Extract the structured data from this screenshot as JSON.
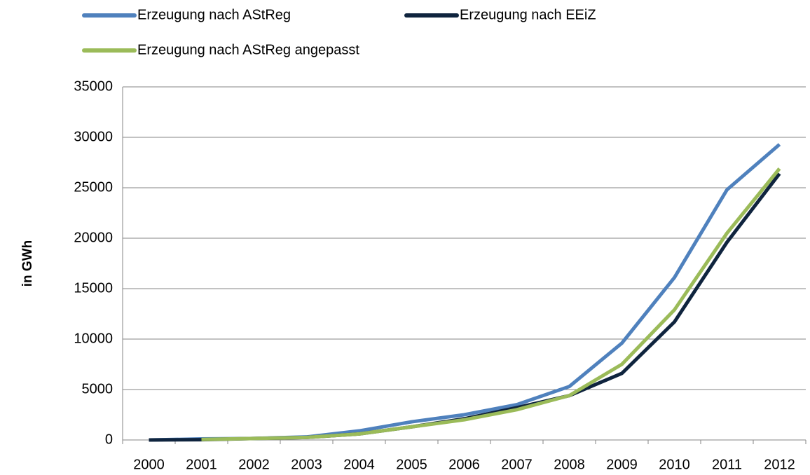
{
  "chart_data": {
    "type": "line",
    "y_axis_label": "in GWh",
    "categories": [
      "2000",
      "2001",
      "2002",
      "2003",
      "2004",
      "2005",
      "2006",
      "2007",
      "2008",
      "2009",
      "2010",
      "2011",
      "2012"
    ],
    "series": [
      {
        "name": "Erzeugung nach AStReg",
        "color": "#4f81bd",
        "values": [
          0,
          100,
          150,
          300,
          900,
          1800,
          2500,
          3500,
          5300,
          9600,
          16100,
          24800,
          29300
        ]
      },
      {
        "name": "Erzeugung nach EEiZ",
        "color": "#0f243e",
        "values": [
          0,
          30,
          150,
          250,
          600,
          1300,
          2100,
          3200,
          4400,
          6600,
          11700,
          19600,
          26400
        ]
      },
      {
        "name": "Erzeugung nach AStReg angepasst",
        "color": "#9bbb59",
        "values": [
          null,
          50,
          150,
          250,
          600,
          1300,
          2000,
          3000,
          4400,
          7500,
          12900,
          20500,
          26900
        ]
      }
    ],
    "ylim": [
      0,
      35000
    ],
    "yticks": [
      0,
      5000,
      10000,
      15000,
      20000,
      25000,
      30000,
      35000
    ],
    "grid": true,
    "legend": "top"
  }
}
